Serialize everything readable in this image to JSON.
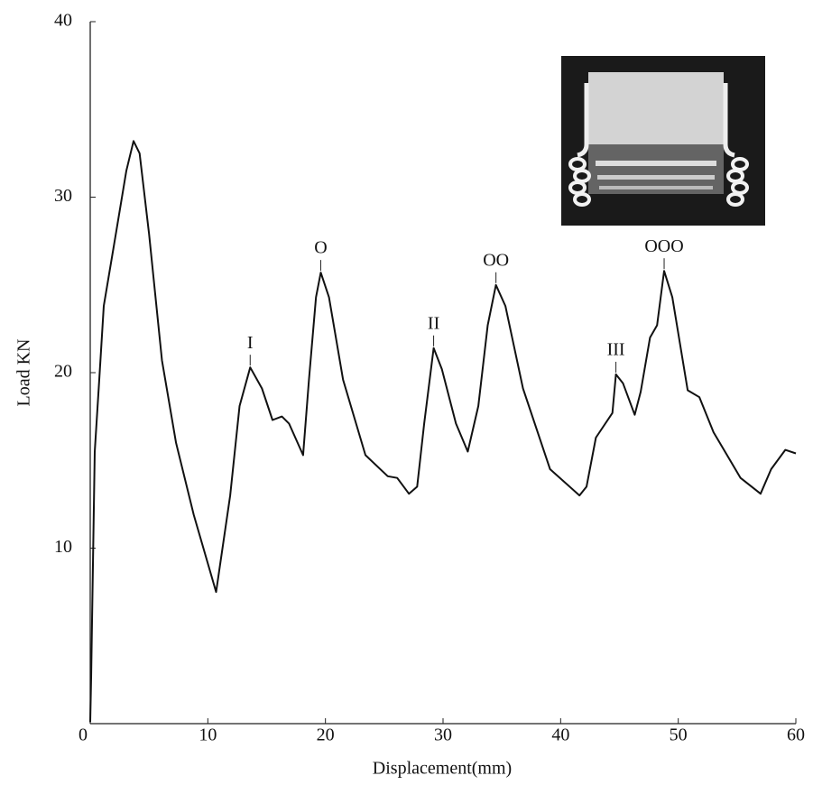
{
  "chart_data": {
    "type": "line",
    "xlabel": "Displacement(mm)",
    "ylabel": "Load KN",
    "x": [
      0,
      0.08,
      0.38,
      0.77,
      1.15,
      2.3,
      3.07,
      3.68,
      4.2,
      5,
      6.1,
      7.3,
      8.8,
      10.7,
      11.9,
      12.7,
      13.6,
      14.6,
      15.5,
      16.3,
      16.9,
      18.1,
      18.6,
      19.2,
      19.6,
      20.3,
      21.5,
      23.4,
      25.3,
      26.1,
      27.1,
      27.8,
      28.4,
      29.2,
      29.9,
      31.1,
      32.1,
      33,
      33.8,
      34.5,
      35.3,
      36.8,
      39.1,
      41.6,
      42.2,
      43,
      44.4,
      44.7,
      45.3,
      46.3,
      46.8,
      47.6,
      48.2,
      48.8,
      49.5,
      50.8,
      51.8,
      53,
      55.3,
      57,
      57.9,
      59.1,
      60
    ],
    "values": [
      0.1,
      2.6,
      15.5,
      19.6,
      23.8,
      28.4,
      31.5,
      33.2,
      32.5,
      27.9,
      20.7,
      16,
      11.9,
      7.5,
      13,
      18.1,
      20.3,
      19.1,
      17.3,
      17.5,
      17.1,
      15.3,
      19.6,
      24.3,
      25.7,
      24.3,
      19.6,
      15.3,
      14.1,
      14,
      13.1,
      13.5,
      17.1,
      21.4,
      20.2,
      17.1,
      15.5,
      18.1,
      22.7,
      25,
      23.8,
      19.1,
      14.5,
      13,
      13.5,
      16.3,
      17.7,
      19.9,
      19.4,
      17.6,
      18.9,
      22,
      22.7,
      25.8,
      24.3,
      19,
      18.6,
      16.6,
      14,
      13.1,
      14.5,
      15.6,
      15.4
    ],
    "color": "#111111",
    "annotations": [
      {
        "text": "I",
        "x": 13.6,
        "y": 20.3
      },
      {
        "text": "O",
        "x": 19.6,
        "y": 25.7
      },
      {
        "text": "II",
        "x": 29.2,
        "y": 21.4
      },
      {
        "text": "OO",
        "x": 34.5,
        "y": 25
      },
      {
        "text": "III",
        "x": 44.7,
        "y": 19.9
      },
      {
        "text": "OOO",
        "x": 48.8,
        "y": 25.8
      }
    ],
    "xlim": [
      0,
      60
    ],
    "xticks": [
      0,
      10,
      20,
      30,
      40,
      50,
      60
    ],
    "ylim": [
      0,
      40
    ],
    "yticks": [
      10,
      20,
      30,
      40
    ],
    "grid": false
  }
}
